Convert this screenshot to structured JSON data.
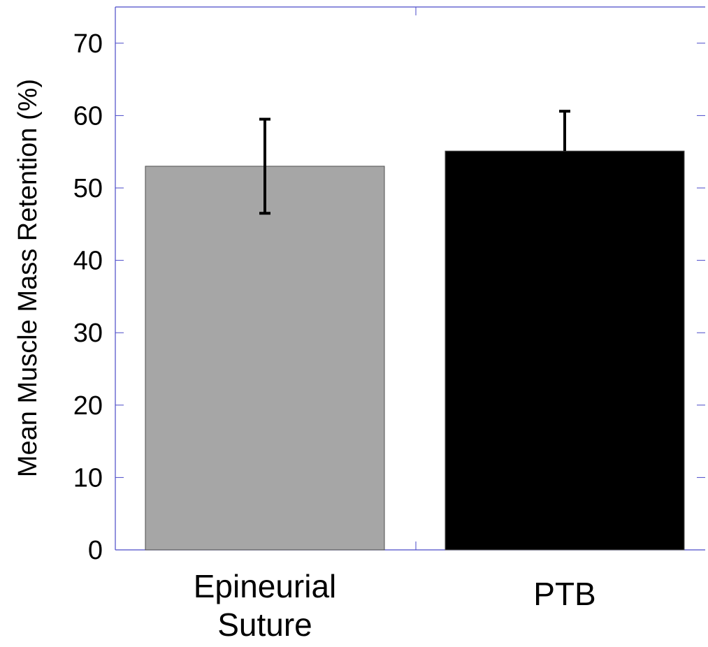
{
  "chart_data": {
    "type": "bar",
    "title": "",
    "xlabel": "",
    "ylabel": "Mean Muscle Mass Retention (%)",
    "ylim": [
      0,
      75
    ],
    "yticks": [
      0,
      10,
      20,
      30,
      40,
      50,
      60,
      70
    ],
    "ytick_labels": [
      "0",
      "10",
      "20",
      "30",
      "40",
      "50",
      "60",
      "70"
    ],
    "categories": [
      [
        "Epineurial",
        "Suture"
      ],
      [
        "PTB"
      ]
    ],
    "values": [
      53.0,
      55.1
    ],
    "error_upper": [
      59.5,
      60.6
    ],
    "error_lower": [
      46.5,
      null
    ],
    "bar_colors": [
      "#a6a6a6",
      "#000000"
    ],
    "axis_color": "#4a4ac8",
    "grid": false,
    "legend": "none"
  }
}
